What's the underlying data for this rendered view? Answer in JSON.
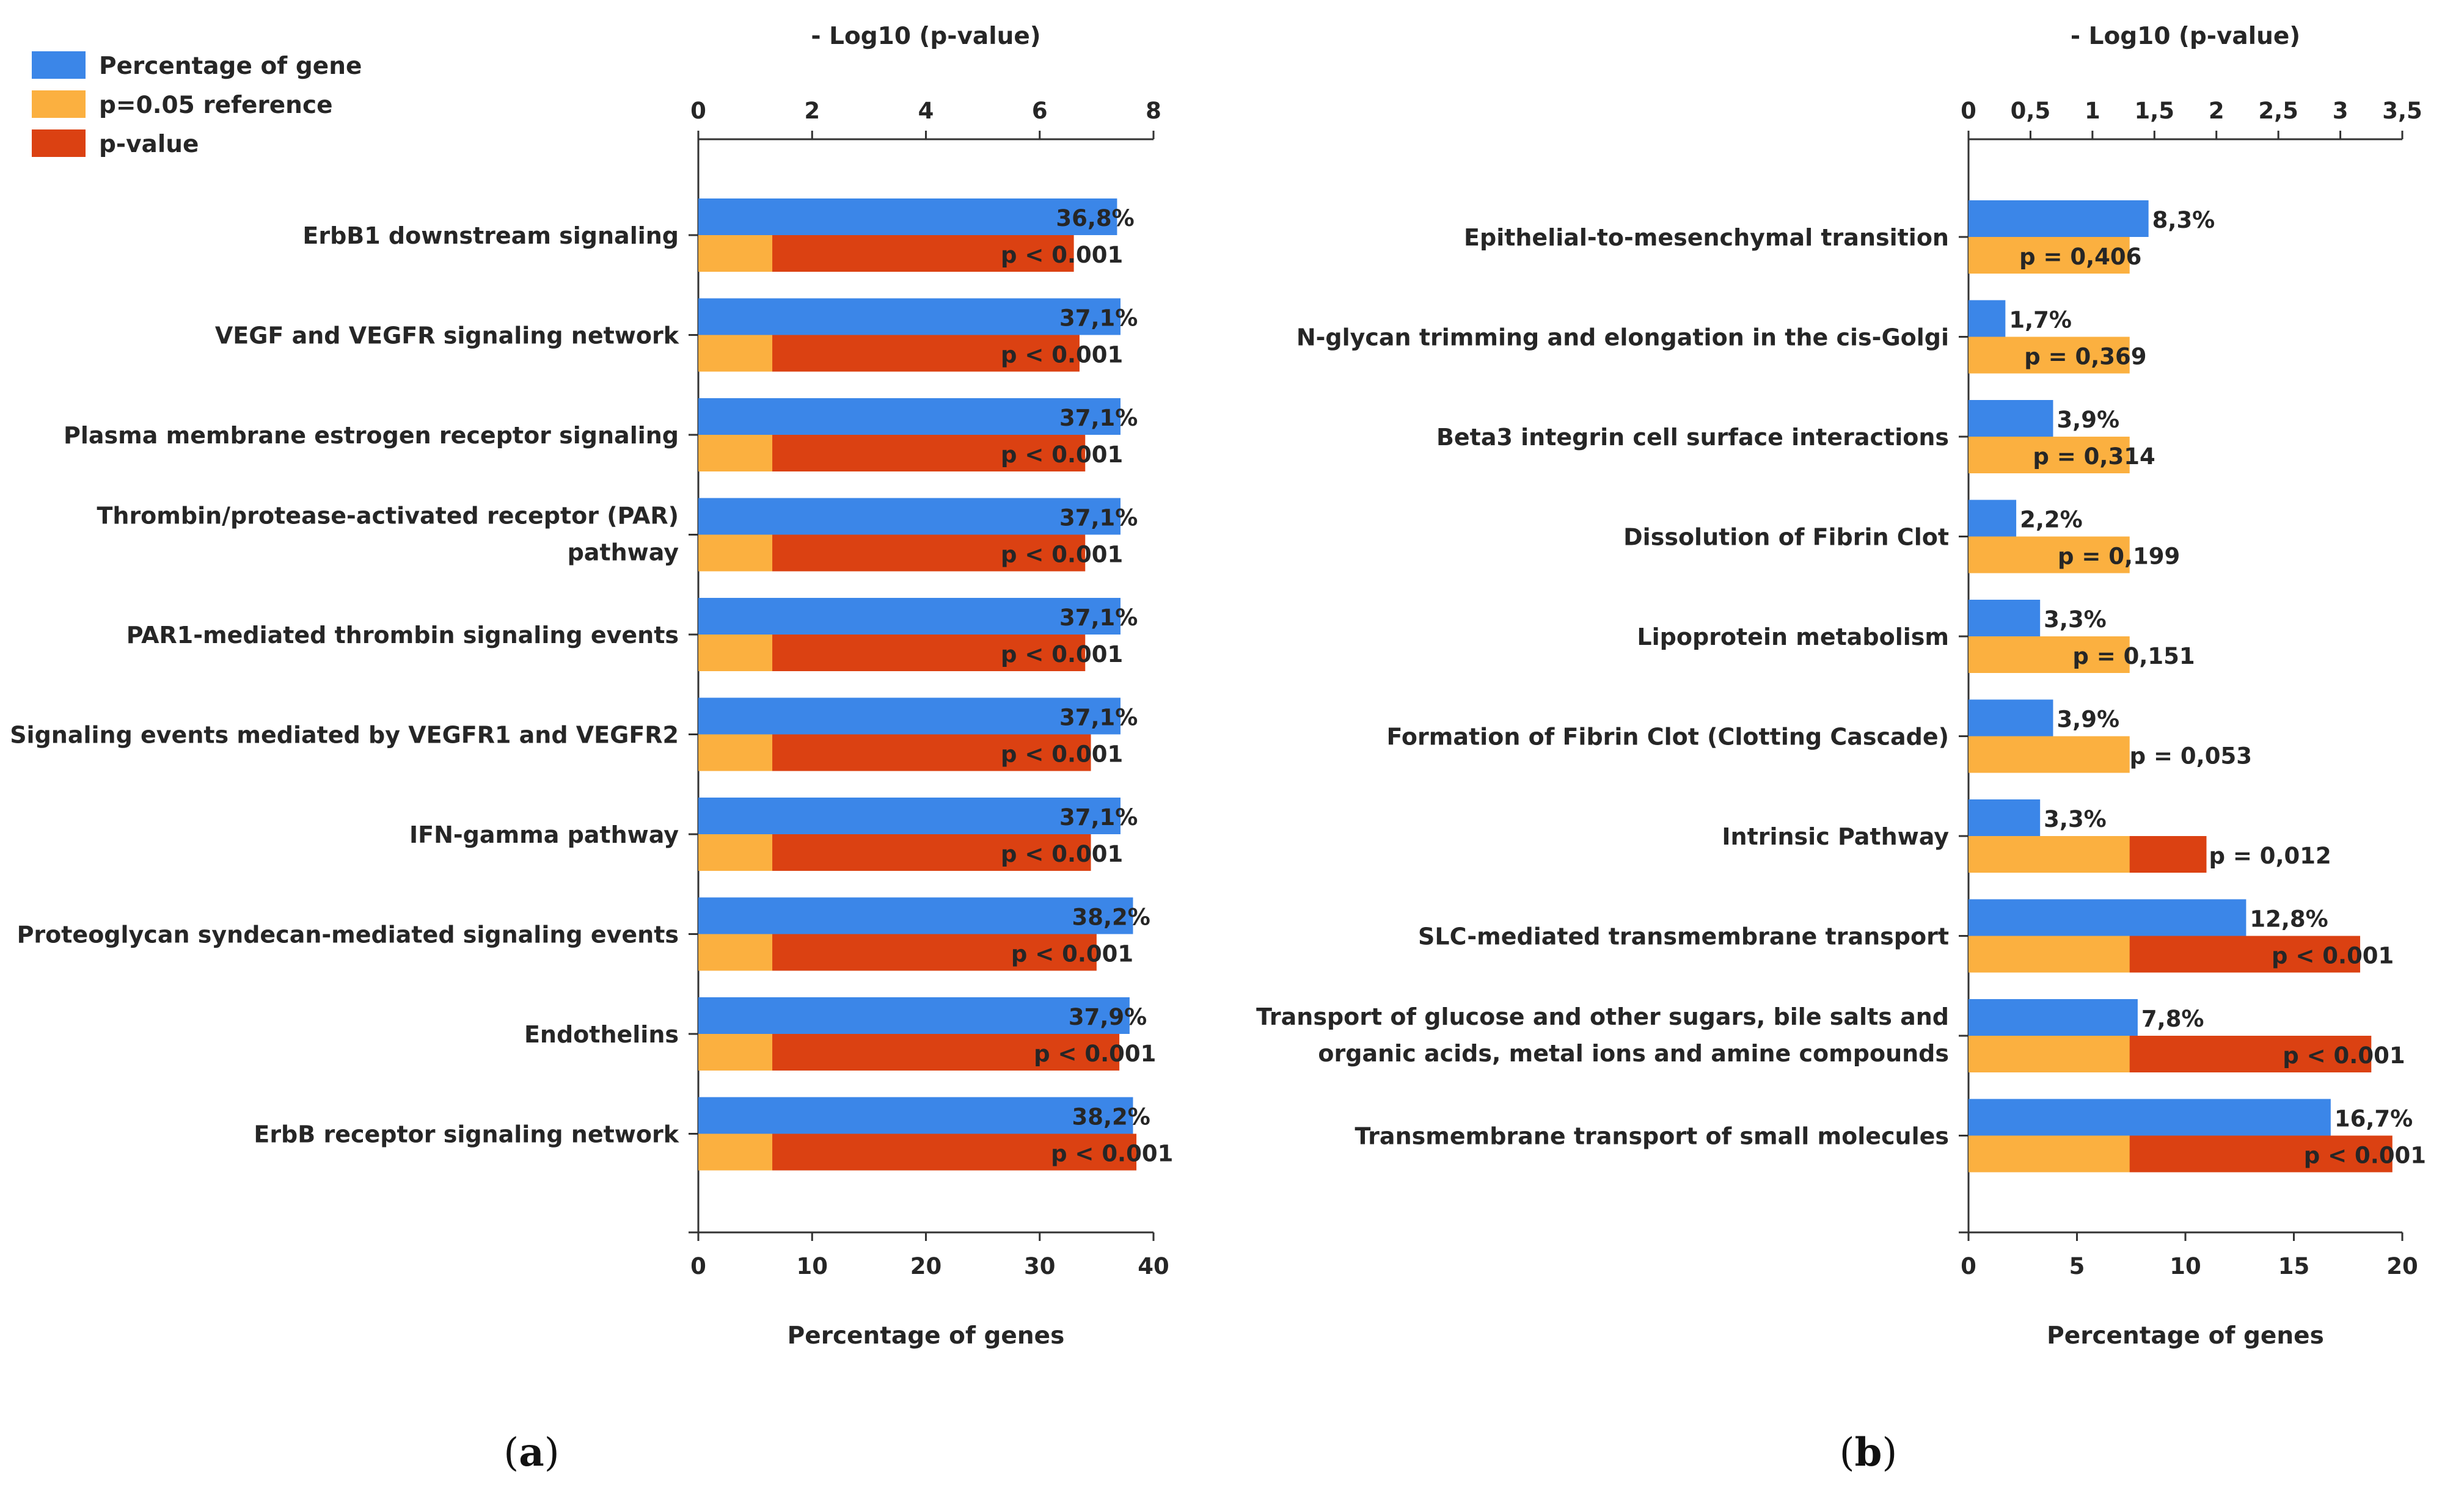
{
  "colors": {
    "percentage": "#3b86e8",
    "reference": "#fbb040",
    "pvalue": "#db4112",
    "axis": "#333333",
    "text": "#262626"
  },
  "legend": {
    "placement": "top-left",
    "items": [
      "Percentage of gene",
      "p=0.05 reference",
      "p-value"
    ]
  },
  "panel_labels": [
    {
      "open": "(",
      "letter": "a",
      "close": ")"
    },
    {
      "open": "(",
      "letter": "b",
      "close": ")"
    }
  ],
  "chart_data": [
    {
      "type": "bar",
      "orientation": "horizontal",
      "top_axis": {
        "label": "- Log10 (p-value)",
        "range": [
          0,
          8
        ],
        "ticks": [
          "0",
          "2",
          "4",
          "6",
          "8"
        ]
      },
      "bottom_axis": {
        "label": "Percentage of genes",
        "range": [
          0,
          40
        ],
        "ticks": [
          "0",
          "10",
          "20",
          "30",
          "40"
        ]
      },
      "categories": [
        [
          "ErbB1 downstream signaling"
        ],
        [
          "VEGF and VEGFR signaling network"
        ],
        [
          "Plasma membrane estrogen receptor signaling"
        ],
        [
          "Thrombin/protease-activated receptor (PAR)",
          "pathway"
        ],
        [
          "PAR1-mediated thrombin signaling events"
        ],
        [
          "Signaling events mediated by VEGFR1 and VEGFR2"
        ],
        [
          "IFN-gamma pathway"
        ],
        [
          "Proteoglycan syndecan-mediated signaling events"
        ],
        [
          "Endothelins"
        ],
        [
          "ErbB receptor signaling network"
        ]
      ],
      "series": [
        {
          "name": "Percentage of gene",
          "values": [
            36.8,
            37.1,
            37.1,
            37.1,
            37.1,
            37.1,
            37.1,
            38.2,
            37.9,
            38.2
          ],
          "labels": [
            "36,8%",
            "37,1%",
            "37,1%",
            "37,1%",
            "37,1%",
            "37,1%",
            "37,1%",
            "38,2%",
            "37,9%",
            "38,2%"
          ]
        },
        {
          "name": "p=0.05 reference",
          "values": [
            1.3,
            1.3,
            1.3,
            1.3,
            1.3,
            1.3,
            1.3,
            1.3,
            1.3,
            1.3
          ]
        },
        {
          "name": "p-value",
          "values": [
            6.6,
            6.7,
            6.8,
            6.8,
            6.8,
            6.9,
            6.9,
            7.0,
            7.4,
            7.7
          ],
          "labels": [
            "p < 0.001",
            "p < 0.001",
            "p < 0.001",
            "p < 0.001",
            "p < 0.001",
            "p < 0.001",
            "p < 0.001",
            "p < 0.001",
            "p < 0.001",
            "p < 0.001"
          ]
        }
      ]
    },
    {
      "type": "bar",
      "orientation": "horizontal",
      "top_axis": {
        "label": "- Log10 (p-value)",
        "range": [
          0,
          3.5
        ],
        "ticks": [
          "0",
          "0,5",
          "1",
          "1,5",
          "2",
          "2,5",
          "3",
          "3,5"
        ]
      },
      "bottom_axis": {
        "label": "Percentage of genes",
        "range": [
          0,
          20
        ],
        "ticks": [
          "0",
          "5",
          "10",
          "15",
          "20"
        ]
      },
      "categories": [
        [
          "Epithelial-to-mesenchymal transition"
        ],
        [
          "N-glycan trimming and elongation in the cis-Golgi"
        ],
        [
          "Beta3 integrin cell surface interactions"
        ],
        [
          "Dissolution of Fibrin Clot"
        ],
        [
          "Lipoprotein metabolism"
        ],
        [
          "Formation of Fibrin Clot (Clotting Cascade)"
        ],
        [
          "Intrinsic Pathway"
        ],
        [
          "SLC-mediated transmembrane transport"
        ],
        [
          "Transport of glucose and other sugars, bile salts and",
          "organic acids, metal ions and amine compounds"
        ],
        [
          "Transmembrane transport of small molecules"
        ]
      ],
      "series": [
        {
          "name": "Percentage of gene",
          "values": [
            8.3,
            1.7,
            3.9,
            2.2,
            3.3,
            3.9,
            3.3,
            12.8,
            7.8,
            16.7
          ],
          "labels": [
            "8,3%",
            "1,7%",
            "3,9%",
            "2,2%",
            "3,3%",
            "3,9%",
            "3,3%",
            "12,8%",
            "7,8%",
            "16,7%"
          ]
        },
        {
          "name": "p=0.05 reference",
          "values": [
            1.3,
            1.3,
            1.3,
            1.3,
            1.3,
            1.3,
            1.3,
            1.3,
            1.3,
            1.3
          ]
        },
        {
          "name": "p-value",
          "values": [
            0.39,
            0.43,
            0.5,
            0.7,
            0.82,
            1.28,
            1.92,
            3.16,
            3.25,
            3.42
          ],
          "labels": [
            "p = 0,406",
            "p = 0,369",
            "p = 0,314",
            "p = 0,199",
            "p = 0,151",
            "p = 0,053",
            "p = 0,012",
            "p < 0.001",
            "p < 0.001",
            "p < 0.001"
          ]
        }
      ]
    }
  ]
}
